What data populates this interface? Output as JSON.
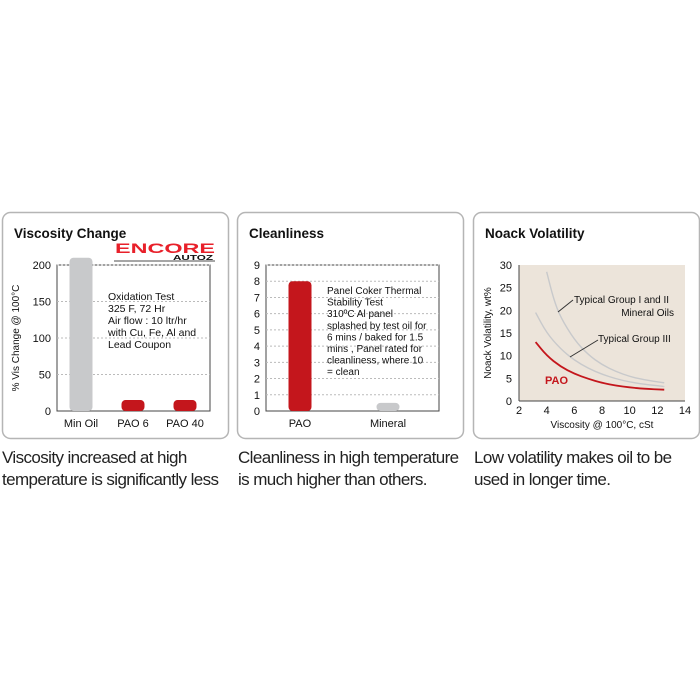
{
  "logo": {
    "text": "ENCORE",
    "subtext": "AUTOZ",
    "color": "#e8202a"
  },
  "colors": {
    "red": "#c4161c",
    "gray": "#c8c9cb",
    "panel_border": "#b5b5b5",
    "plot_bg_noack": "#ece4da"
  },
  "chart_data": [
    {
      "type": "bar",
      "title": "Viscosity Change",
      "ylabel": "% Vis Change @ 100°C",
      "xlabel": "",
      "ylim": [
        0,
        220
      ],
      "yticks": [
        0,
        50,
        100,
        150,
        200
      ],
      "grid": true,
      "categories": [
        "Min Oil",
        "PAO 6",
        "PAO 40"
      ],
      "values": [
        210,
        15,
        15
      ],
      "bar_colors": [
        "gray",
        "red",
        "red"
      ],
      "annotation": [
        "Oxidation Test",
        "325 F, 72 Hr",
        "Air flow : 10 ltr/hr",
        "with Cu, Fe, Al and",
        "Lead Coupon"
      ],
      "caption": [
        "Viscosity increased at high",
        "temperature is significantly less"
      ]
    },
    {
      "type": "bar",
      "title": "Cleanliness",
      "ylabel": "",
      "xlabel": "",
      "ylim": [
        0,
        9
      ],
      "yticks": [
        0,
        1,
        2,
        3,
        4,
        5,
        6,
        7,
        8,
        9
      ],
      "grid": true,
      "categories": [
        "PAO",
        "Mineral"
      ],
      "values": [
        8,
        0.5
      ],
      "bar_colors": [
        "red",
        "gray"
      ],
      "annotation": [
        "Panel  Coker Thermal",
        "Stability Test",
        "310ºC Al panel",
        "splashed by test oil for",
        "6 mins / baked for 1.5",
        "mins , Panel rated for",
        "cleanliness, where 10",
        "= clean"
      ],
      "caption": [
        "Cleanliness in high temperature",
        "is much higher than others."
      ]
    },
    {
      "type": "line",
      "title": "Noack Volatility",
      "ylabel": "Noack Volatility, wt%",
      "xlabel": "Viscosity @ 100°C, cSt",
      "xlim": [
        2,
        14
      ],
      "ylim": [
        0,
        30
      ],
      "xticks": [
        2,
        4,
        6,
        8,
        10,
        12,
        14
      ],
      "yticks": [
        0,
        5,
        10,
        15,
        20,
        25,
        30
      ],
      "grid": false,
      "series": [
        {
          "label": [
            "Typical Group I and II",
            "Mineral Oils"
          ],
          "color": "gray",
          "x": [
            4,
            4.5,
            5,
            6,
            7,
            8,
            9,
            10,
            11,
            12.5
          ],
          "y": [
            28.5,
            22.5,
            18.5,
            13.5,
            10.2,
            8,
            6.5,
            5.4,
            4.7,
            4
          ]
        },
        {
          "label": [
            "Typical Group III"
          ],
          "color": "gray",
          "x": [
            3.2,
            4,
            5,
            6,
            7,
            8,
            9,
            10,
            11,
            12.5
          ],
          "y": [
            19.5,
            15,
            11.5,
            9,
            7.2,
            5.9,
            4.9,
            4.2,
            3.7,
            3.2
          ]
        },
        {
          "label": [
            "PAO"
          ],
          "color": "red",
          "x": [
            3.2,
            4,
            5,
            6,
            7,
            8,
            9,
            10,
            11,
            12.5
          ],
          "y": [
            13,
            10,
            7.6,
            6,
            4.9,
            4,
            3.4,
            3,
            2.7,
            2.5
          ]
        }
      ],
      "caption": [
        "Low volatility makes oil to be",
        "used in longer time."
      ]
    }
  ]
}
